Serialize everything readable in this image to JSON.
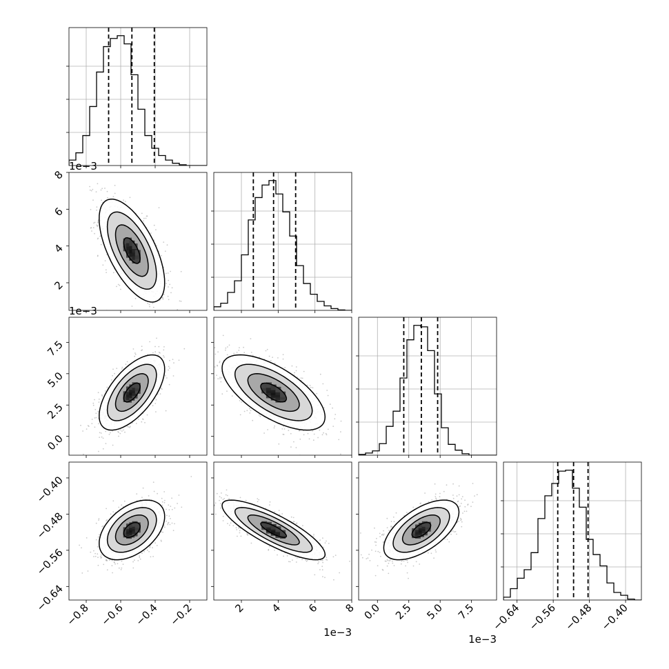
{
  "figure": {
    "type": "corner-plot",
    "background": "#ffffff",
    "colors": {
      "hist": "#000000",
      "grid": "#b0b0b0",
      "quantile": "#000000",
      "points": "#9a9a9a",
      "density_dark": "#000000"
    }
  },
  "chart_data": {
    "type": "corner",
    "n_params": 4,
    "axis_labels": [
      "",
      "",
      "",
      ""
    ],
    "offset_texts": {
      "y_p1": "1e−3",
      "y_p2": "1e−3",
      "x_p1": "1e−3",
      "x_p2": "1e−3"
    },
    "params": [
      {
        "range": [
          -0.9,
          -0.1
        ],
        "ticks": [
          -0.8,
          -0.6,
          -0.4,
          -0.2
        ],
        "tick_labels": [
          "−0.8",
          "−0.6",
          "−0.4",
          "−0.2"
        ],
        "quantiles": [
          -0.67,
          -0.535,
          -0.405
        ],
        "hist": {
          "edges_start": -0.9,
          "bin_width": 0.04,
          "counts": [
            60,
            140,
            330,
            650,
            1030,
            1310,
            1400,
            1430,
            1340,
            1000,
            620,
            330,
            190,
            110,
            60,
            25,
            8,
            0,
            0,
            0
          ]
        }
      },
      {
        "range": [
          0.0005,
          0.008
        ],
        "ticks": [
          0.002,
          0.004,
          0.006,
          0.008
        ],
        "tick_labels": [
          "2",
          "4",
          "6",
          "8"
        ],
        "quantiles": [
          0.00265,
          0.00375,
          0.00495
        ],
        "hist": {
          "edges_start": 0.0005,
          "bin_width": 0.000375,
          "counts": [
            40,
            80,
            200,
            330,
            620,
            1010,
            1260,
            1400,
            1450,
            1300,
            1100,
            830,
            500,
            300,
            180,
            100,
            50,
            20,
            5,
            0
          ]
        }
      },
      {
        "range": [
          -0.0015,
          0.0095
        ],
        "ticks": [
          0.0,
          0.0025,
          0.005,
          0.0075
        ],
        "tick_labels": [
          "0.0",
          "2.5",
          "5.0",
          "7.5"
        ],
        "quantiles": [
          0.0021,
          0.0035,
          0.0048
        ],
        "hist": {
          "edges_start": -0.0015,
          "bin_width": 0.00055,
          "counts": [
            10,
            30,
            60,
            160,
            400,
            610,
            1070,
            1600,
            1800,
            1780,
            1450,
            850,
            380,
            150,
            70,
            20,
            0,
            0,
            0,
            0
          ]
        }
      },
      {
        "range": [
          -0.67,
          -0.365
        ],
        "ticks": [
          -0.64,
          -0.56,
          -0.48,
          -0.4
        ],
        "tick_labels": [
          "−0.64",
          "−0.56",
          "−0.48",
          "−0.40"
        ],
        "quantiles": [
          -0.55,
          -0.515,
          -0.483
        ],
        "hist": {
          "edges_start": -0.67,
          "bin_width": 0.01525,
          "counts": [
            30,
            120,
            230,
            320,
            500,
            860,
            1100,
            1230,
            1360,
            1370,
            1180,
            980,
            640,
            480,
            360,
            180,
            80,
            50,
            10,
            0
          ]
        }
      }
    ],
    "correlations": [
      {
        "x": 0,
        "y": 1,
        "mean": [
          -0.535,
          0.00375
        ],
        "sd": [
          0.095,
          0.0014
        ],
        "rho": -0.62
      },
      {
        "x": 0,
        "y": 2,
        "mean": [
          -0.535,
          0.0035
        ],
        "sd": [
          0.095,
          0.0015
        ],
        "rho": 0.62
      },
      {
        "x": 0,
        "y": 3,
        "mean": [
          -0.535,
          -0.515
        ],
        "sd": [
          0.095,
          0.033
        ],
        "rho": 0.45
      },
      {
        "x": 1,
        "y": 2,
        "mean": [
          0.00375,
          0.0035
        ],
        "sd": [
          0.0014,
          0.0015
        ],
        "rho": -0.65
      },
      {
        "x": 1,
        "y": 3,
        "mean": [
          0.00375,
          -0.515
        ],
        "sd": [
          0.0014,
          0.033
        ],
        "rho": -0.82
      },
      {
        "x": 2,
        "y": 3,
        "mean": [
          0.0035,
          -0.515
        ],
        "sd": [
          0.0015,
          0.033
        ],
        "rho": 0.6
      }
    ],
    "contour_levels_sigma": [
      0.5,
      1.0,
      1.5,
      2.0
    ],
    "grid": true
  }
}
